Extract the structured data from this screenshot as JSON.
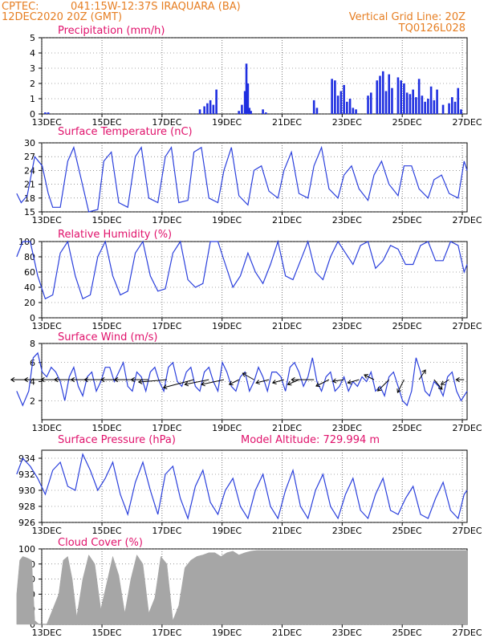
{
  "header": {
    "source": "CPTEC:",
    "location": "041:15W-12:37S   IRAQUARA (BA)",
    "init_time": "12DEC2020 20Z (GMT)",
    "grid_note": "Vertical Grid Line: 20Z",
    "code": "TQ0126L028"
  },
  "colors": {
    "header": "#e67e22",
    "title": "#e0116b",
    "line": "#2a3fdc",
    "bar": "#1f2fe0",
    "cloud": "#a6a6a6",
    "grid": "#555555"
  },
  "x_axis": {
    "start": "12DEC 20Z",
    "end": "27DEC",
    "tick_labels": [
      "13DEC",
      "15DEC",
      "17DEC",
      "19DEC",
      "21DEC",
      "23DEC",
      "25DEC",
      "27DEC"
    ],
    "tick_days": [
      13,
      15,
      17,
      19,
      21,
      23,
      25,
      27
    ]
  },
  "chart_data": [
    {
      "type": "bar",
      "title": "Precipitation (mm/h)",
      "ylim": [
        0,
        5
      ],
      "yticks": [
        0,
        1,
        2,
        3,
        4,
        5
      ],
      "x_days": [
        12.95,
        13.05,
        18.1,
        18.25,
        18.35,
        18.45,
        18.55,
        18.65,
        19.4,
        19.5,
        19.6,
        19.65,
        19.7,
        19.75,
        19.8,
        20.2,
        20.3,
        21.9,
        22.0,
        22.5,
        22.6,
        22.7,
        22.8,
        22.9,
        23.0,
        23.1,
        23.2,
        23.3,
        23.7,
        23.8,
        24.0,
        24.1,
        24.2,
        24.3,
        24.4,
        24.5,
        24.7,
        24.8,
        24.9,
        25.0,
        25.1,
        25.2,
        25.3,
        25.4,
        25.5,
        25.6,
        25.7,
        25.8,
        25.9,
        26.0,
        26.2,
        26.4,
        26.5,
        26.6,
        26.7,
        26.8
      ],
      "values": [
        0.1,
        0.1,
        0.3,
        0.5,
        0.7,
        0.9,
        0.6,
        1.6,
        0.2,
        0.6,
        1.5,
        3.3,
        2.0,
        0.4,
        0.2,
        0.3,
        0.1,
        0.9,
        0.4,
        2.3,
        2.2,
        1.2,
        1.5,
        1.9,
        0.8,
        1.0,
        0.4,
        0.3,
        1.2,
        1.4,
        2.2,
        2.5,
        2.8,
        1.5,
        2.6,
        1.7,
        2.4,
        2.2,
        2.0,
        1.4,
        1.3,
        1.6,
        1.1,
        2.3,
        1.2,
        0.8,
        1.0,
        1.8,
        0.9,
        1.6,
        0.6,
        0.7,
        1.1,
        0.8,
        1.7,
        0.3
      ]
    },
    {
      "type": "line",
      "title": "Surface Temperature (nC)",
      "ylim": [
        15,
        30
      ],
      "yticks": [
        15,
        18,
        21,
        24,
        27,
        30
      ],
      "x_days": [
        12.0,
        12.15,
        12.35,
        12.6,
        12.85,
        13.05,
        13.2,
        13.45,
        13.7,
        13.9,
        14.15,
        14.4,
        14.7,
        14.9,
        15.15,
        15.4,
        15.7,
        15.95,
        16.15,
        16.4,
        16.7,
        16.95,
        17.15,
        17.4,
        17.7,
        17.9,
        18.15,
        18.4,
        18.7,
        18.9,
        19.15,
        19.4,
        19.7,
        19.9,
        20.15,
        20.4,
        20.7,
        20.9,
        21.15,
        21.4,
        21.7,
        21.9,
        22.15,
        22.4,
        22.7,
        22.9,
        23.15,
        23.4,
        23.7,
        23.9,
        24.15,
        24.4,
        24.7,
        24.9,
        25.15,
        25.4,
        25.7,
        25.9,
        26.15,
        26.4,
        26.7,
        26.9,
        27.0
      ],
      "values": [
        19,
        17,
        18.5,
        27,
        25,
        19,
        16,
        16,
        26,
        29,
        22,
        15,
        15.5,
        26,
        28,
        17,
        16,
        27,
        29,
        18,
        17,
        27,
        29,
        17,
        17.5,
        28,
        29,
        18,
        17,
        24,
        29,
        18.5,
        16.5,
        24,
        25,
        19.5,
        18,
        24,
        28,
        19,
        18,
        25,
        29,
        20,
        18,
        23,
        25,
        20,
        17.5,
        23,
        26,
        21,
        18.5,
        25,
        25,
        20,
        18,
        22,
        23,
        19,
        18,
        26,
        24
      ]
    },
    {
      "type": "line",
      "title": "Relative Humidity (%)",
      "ylim": [
        0,
        100
      ],
      "yticks": [
        0,
        20,
        40,
        60,
        80,
        100
      ],
      "x_days": [
        12.0,
        12.2,
        12.45,
        12.7,
        12.95,
        13.2,
        13.45,
        13.7,
        13.95,
        14.2,
        14.45,
        14.7,
        14.95,
        15.2,
        15.45,
        15.7,
        15.95,
        16.2,
        16.45,
        16.7,
        16.95,
        17.2,
        17.45,
        17.7,
        17.95,
        18.2,
        18.45,
        18.7,
        18.95,
        19.2,
        19.45,
        19.7,
        19.95,
        20.2,
        20.45,
        20.7,
        20.95,
        21.2,
        21.45,
        21.7,
        21.95,
        22.2,
        22.45,
        22.7,
        22.95,
        23.2,
        23.45,
        23.7,
        23.95,
        24.2,
        24.45,
        24.7,
        24.95,
        25.2,
        25.45,
        25.7,
        25.95,
        26.2,
        26.45,
        26.7,
        26.9,
        27.0
      ],
      "values": [
        80,
        100,
        100,
        55,
        25,
        30,
        85,
        100,
        55,
        25,
        30,
        80,
        100,
        55,
        30,
        35,
        85,
        100,
        55,
        35,
        38,
        85,
        100,
        50,
        40,
        45,
        100,
        100,
        70,
        40,
        55,
        85,
        60,
        45,
        70,
        100,
        55,
        50,
        75,
        100,
        60,
        50,
        80,
        100,
        85,
        70,
        95,
        100,
        65,
        75,
        95,
        90,
        70,
        70,
        95,
        100,
        75,
        75,
        100,
        95,
        60,
        70
      ]
    },
    {
      "type": "line",
      "title": "Surface Wind (m/s)",
      "ylim": [
        0,
        8
      ],
      "yticks": [
        2,
        4,
        6,
        8
      ],
      "x_days": [
        12.0,
        12.2,
        12.4,
        12.55,
        12.7,
        12.85,
        13.0,
        13.15,
        13.3,
        13.45,
        13.6,
        13.75,
        13.9,
        14.05,
        14.2,
        14.35,
        14.5,
        14.65,
        14.8,
        14.95,
        15.1,
        15.25,
        15.4,
        15.55,
        15.7,
        15.85,
        16.0,
        16.15,
        16.3,
        16.45,
        16.6,
        16.75,
        16.9,
        17.05,
        17.2,
        17.35,
        17.5,
        17.65,
        17.8,
        17.95,
        18.1,
        18.25,
        18.4,
        18.55,
        18.7,
        18.85,
        19.0,
        19.15,
        19.3,
        19.45,
        19.6,
        19.75,
        19.9,
        20.05,
        20.2,
        20.35,
        20.5,
        20.65,
        20.8,
        20.95,
        21.1,
        21.25,
        21.4,
        21.55,
        21.7,
        21.85,
        22.0,
        22.15,
        22.3,
        22.45,
        22.6,
        22.75,
        22.9,
        23.05,
        23.2,
        23.35,
        23.5,
        23.65,
        23.8,
        23.95,
        24.1,
        24.25,
        24.4,
        24.55,
        24.7,
        24.85,
        25.0,
        25.15,
        25.3,
        25.45,
        25.6,
        25.75,
        25.9,
        26.05,
        26.2,
        26.35,
        26.5,
        26.65,
        26.8,
        27.0
      ],
      "values": [
        3,
        1.5,
        3,
        6.5,
        7,
        5,
        4.5,
        5.5,
        5,
        4,
        2,
        4.5,
        5.5,
        3.5,
        2.5,
        4.5,
        5,
        3,
        4,
        5.5,
        5.5,
        4,
        5,
        6,
        3.5,
        3,
        5,
        4.5,
        3,
        5,
        5.5,
        4,
        3,
        5.5,
        6,
        4,
        3.5,
        5,
        5.5,
        3.5,
        3,
        5,
        5.5,
        4,
        3,
        6,
        5,
        3.5,
        3,
        4.5,
        5,
        3,
        4,
        5.5,
        4.5,
        3,
        5,
        5,
        4.5,
        3,
        5.5,
        6,
        5,
        3.5,
        4.5,
        6.5,
        4,
        3,
        4.5,
        5,
        3,
        3.5,
        4.5,
        3,
        4,
        3.5,
        4.5,
        4,
        5,
        3,
        3.5,
        2.5,
        4.5,
        5,
        3.5,
        2,
        1.5,
        3,
        6.5,
        5,
        3,
        2.5,
        4,
        3.5,
        2.5,
        4.5,
        5,
        3,
        2,
        3
      ]
    },
    {
      "type": "line",
      "title": "Surface Pressure (hPa)",
      "annotation": "Model Altitude: 729.994 m",
      "ylim": [
        926,
        935
      ],
      "yticks": [
        926,
        928,
        930,
        932,
        934
      ],
      "x_days": [
        12.0,
        12.2,
        12.45,
        12.7,
        12.95,
        13.2,
        13.45,
        13.7,
        13.95,
        14.2,
        14.45,
        14.7,
        14.95,
        15.2,
        15.45,
        15.7,
        15.95,
        16.2,
        16.45,
        16.7,
        16.95,
        17.2,
        17.45,
        17.7,
        17.95,
        18.2,
        18.45,
        18.7,
        18.95,
        19.2,
        19.45,
        19.7,
        19.95,
        20.2,
        20.45,
        20.7,
        20.95,
        21.2,
        21.45,
        21.7,
        21.95,
        22.2,
        22.45,
        22.7,
        22.95,
        23.2,
        23.45,
        23.7,
        23.95,
        24.2,
        24.45,
        24.7,
        24.95,
        25.2,
        25.45,
        25.7,
        25.95,
        26.2,
        26.45,
        26.7,
        26.9,
        27.0
      ],
      "values": [
        932,
        934,
        933,
        931.5,
        929.5,
        932.5,
        933.5,
        930.5,
        930,
        934.5,
        932.5,
        930,
        931.5,
        933.5,
        929.5,
        927,
        931,
        933.5,
        930,
        927,
        932,
        933,
        929,
        926.5,
        930.5,
        932.5,
        928.5,
        927,
        930,
        931.5,
        928,
        926.5,
        930,
        932,
        928,
        926.5,
        930,
        932.5,
        928,
        926.5,
        930,
        932,
        928,
        926.5,
        929.5,
        931.5,
        927.5,
        926.5,
        929.5,
        931.5,
        927.5,
        927,
        929,
        930.5,
        927,
        926.5,
        929,
        931,
        927.5,
        926.5,
        929.5,
        930
      ]
    },
    {
      "type": "area",
      "title": "Cloud Cover (%)",
      "ylim": [
        0,
        100
      ],
      "yticks": [
        0,
        20,
        40,
        60,
        80,
        100
      ],
      "x_days": [
        12.0,
        12.1,
        12.2,
        12.35,
        12.5,
        12.6,
        12.75,
        13.0,
        13.2,
        13.4,
        13.55,
        13.7,
        13.85,
        14.0,
        14.2,
        14.4,
        14.6,
        14.8,
        15.0,
        15.2,
        15.4,
        15.6,
        15.8,
        16.0,
        16.2,
        16.4,
        16.6,
        16.8,
        17.0,
        17.2,
        17.4,
        17.6,
        17.8,
        18.0,
        18.2,
        18.4,
        18.6,
        18.8,
        19.0,
        19.2,
        19.4,
        19.6,
        19.8,
        20.0,
        20.5,
        21.0,
        21.5,
        22.0,
        22.5,
        23.0,
        23.5,
        24.0,
        24.5,
        25.0,
        25.5,
        26.0,
        26.5,
        27.0
      ],
      "values": [
        40,
        85,
        90,
        88,
        85,
        5,
        0,
        0,
        20,
        40,
        85,
        90,
        60,
        10,
        60,
        92,
        80,
        20,
        55,
        90,
        65,
        15,
        60,
        92,
        80,
        15,
        35,
        90,
        80,
        5,
        25,
        75,
        85,
        90,
        92,
        95,
        95,
        90,
        95,
        97,
        92,
        95,
        97,
        98,
        98,
        98,
        98,
        98,
        98,
        98,
        98,
        98,
        98,
        98,
        98,
        98,
        98,
        98
      ]
    }
  ],
  "wind_arrows": {
    "y_level": 4.2,
    "x_days": [
      12.4,
      12.9,
      13.4,
      13.9,
      14.4,
      14.9,
      15.4,
      15.9,
      16.4,
      17.0,
      17.9,
      18.4,
      18.9,
      19.4,
      19.9,
      20.4,
      20.9,
      21.4,
      21.9,
      22.4,
      22.9,
      23.4,
      23.9,
      24.4,
      24.9,
      25.4,
      25.9,
      26.4,
      26.9
    ],
    "dx": [
      -22,
      -24,
      -22,
      -24,
      -22,
      -24,
      -22,
      -24,
      -22,
      -35,
      -38,
      -30,
      -28,
      -12,
      -14,
      -16,
      -14,
      -14,
      -28,
      -16,
      -14,
      -14,
      -12,
      -14,
      -8,
      8,
      10,
      -10,
      -10
    ],
    "dy": [
      0,
      0,
      0,
      0,
      0,
      0,
      0,
      0,
      0,
      3,
      10,
      6,
      6,
      6,
      -8,
      4,
      4,
      6,
      0,
      8,
      2,
      4,
      -6,
      14,
      16,
      -12,
      12,
      6,
      0
    ]
  }
}
